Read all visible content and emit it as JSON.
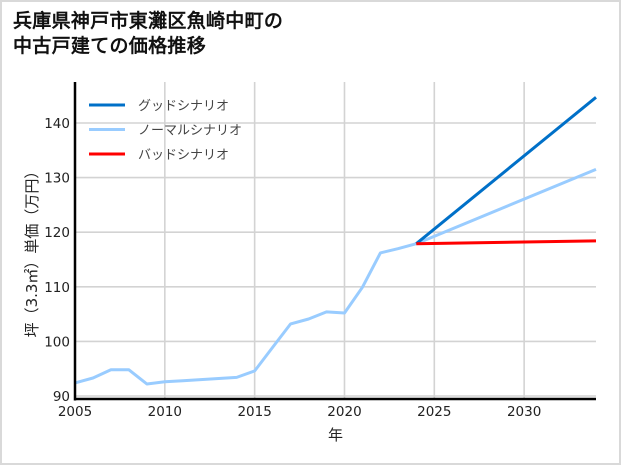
{
  "title": {
    "line1": "兵庫県神戸市東灘区魚崎中町の",
    "line2": "中古戸建ての価格推移"
  },
  "chart_data": {
    "type": "line",
    "title": "兵庫県神戸市東灘区魚崎中町の中古戸建ての価格推移",
    "xlabel": "年",
    "ylabel": "坪（3.3㎡）単価（万円）",
    "xlim": [
      2005,
      2034
    ],
    "ylim": [
      90,
      147
    ],
    "xticks": [
      2005,
      2010,
      2015,
      2020,
      2025,
      2030
    ],
    "yticks": [
      90,
      100,
      110,
      120,
      130,
      140
    ],
    "grid": true,
    "legend_position": "upper left",
    "series": [
      {
        "name": "ノーマルシナリオ",
        "color": "#99ccff",
        "x": [
          2005,
          2006,
          2007,
          2008,
          2009,
          2010,
          2011,
          2012,
          2013,
          2014,
          2015,
          2016,
          2017,
          2018,
          2019,
          2020,
          2021,
          2022,
          2023,
          2024,
          2034
        ],
        "values": [
          92.4,
          93.3,
          94.8,
          94.8,
          92.2,
          92.6,
          92.8,
          93.0,
          93.2,
          93.4,
          94.6,
          98.9,
          103.2,
          104.1,
          105.4,
          105.2,
          109.9,
          116.2,
          117.0,
          117.9,
          131.5
        ]
      },
      {
        "name": "グッドシナリオ",
        "color": "#0070c8",
        "x": [
          2024,
          2034
        ],
        "values": [
          117.9,
          144.7
        ]
      },
      {
        "name": "バッドシナリオ",
        "color": "#ff0000",
        "x": [
          2024,
          2034
        ],
        "values": [
          117.9,
          118.4
        ]
      }
    ],
    "legend": [
      {
        "label": "グッドシナリオ",
        "color": "#0070c8"
      },
      {
        "label": "ノーマルシナリオ",
        "color": "#99ccff"
      },
      {
        "label": "バッドシナリオ",
        "color": "#ff0000"
      }
    ]
  }
}
